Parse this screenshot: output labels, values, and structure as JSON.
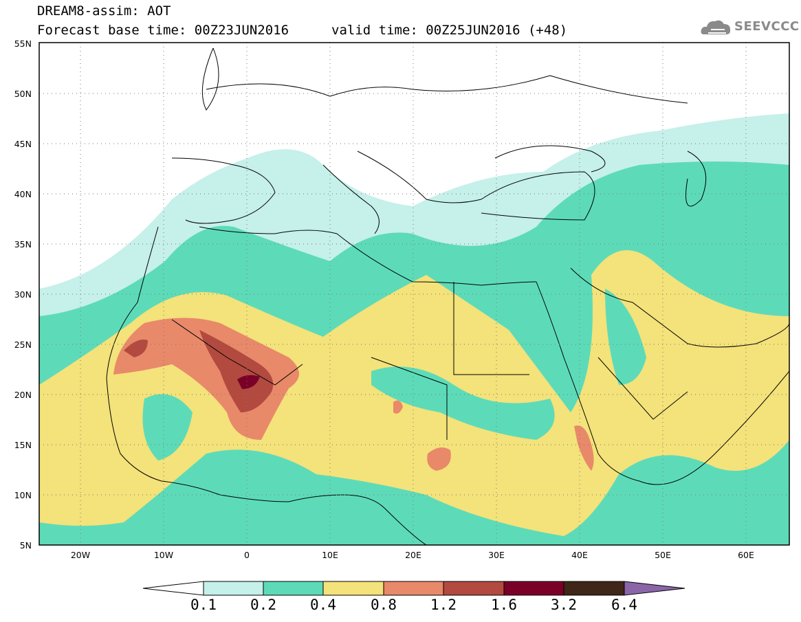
{
  "title": {
    "model": "DREAM8-assim: AOT",
    "base_time": "Forecast base time: 00Z23JUN2016",
    "valid_time": "valid time: 00Z25JUN2016 (+48)"
  },
  "logo": {
    "text": "SEEVCCC",
    "icon": "cloud-icon"
  },
  "map": {
    "latitude_labels": [
      "55N",
      "50N",
      "45N",
      "40N",
      "35N",
      "30N",
      "25N",
      "20N",
      "15N",
      "10N",
      "5N"
    ],
    "longitude_labels": [
      "20W",
      "10W",
      "0",
      "10E",
      "20E",
      "30E",
      "40E",
      "50E",
      "60E"
    ],
    "lon_range": [
      -25,
      65
    ],
    "lat_range": [
      5,
      55
    ],
    "grid": "dotted"
  },
  "legend": {
    "thresholds": [
      "0.1",
      "0.2",
      "0.4",
      "0.8",
      "1.2",
      "1.6",
      "3.2",
      "6.4"
    ],
    "colors": [
      "#ffffff",
      "#c6f0ea",
      "#5ddbb8",
      "#f4e27a",
      "#e8896a",
      "#b24a3f",
      "#7a0028",
      "#3f2618",
      "#8a66a8"
    ]
  },
  "colors": {
    "light": "#c6f0ea",
    "green": "#5ddbb8",
    "yellow": "#f4e27a",
    "orange": "#e8896a",
    "brown": "#b24a3f",
    "maroon": "#7a0028"
  }
}
